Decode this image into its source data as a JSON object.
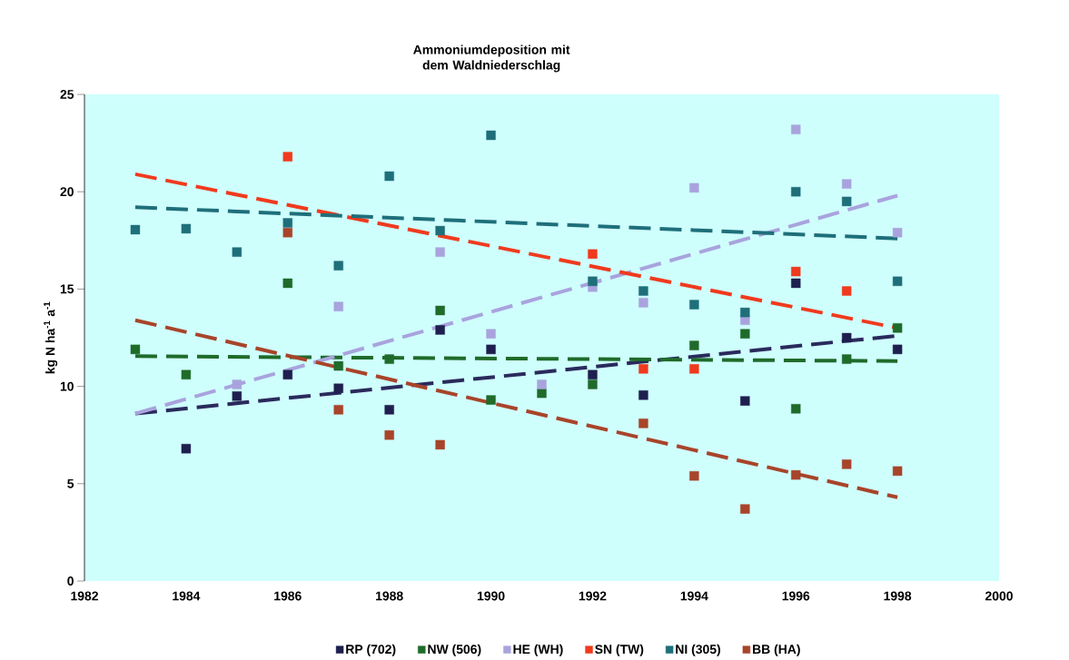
{
  "chart_data": {
    "type": "scatter",
    "title": "Ammoniumdeposition mit dem Waldniederschlag",
    "ylabel": "kg N  ha$^{-1}$  a$^{-1}$",
    "xlim": [
      1982,
      2000
    ],
    "xticks": [
      1982,
      1984,
      1986,
      1988,
      1990,
      1992,
      1994,
      1996,
      1998,
      2000
    ],
    "ylim": [
      0,
      25
    ],
    "yticks": [
      0,
      5,
      10,
      15,
      20,
      25
    ],
    "grid": false,
    "legend": "bottom",
    "marker": "square",
    "series": [
      {
        "type": "line",
        "color": "#2a2a5c",
        "line_style": "dashed",
        "marker": "none",
        "x": [
          1983,
          1998
        ],
        "values": [
          8.6,
          12.6
        ]
      },
      {
        "type": "line",
        "color": "#1f6b2a",
        "line_style": "dashed",
        "marker": "none",
        "x": [
          1983,
          1998
        ],
        "values": [
          11.55,
          11.3
        ]
      },
      {
        "type": "line",
        "color": "#a9a3dd",
        "line_style": "dashed",
        "marker": "none",
        "x": [
          1983,
          1998
        ],
        "values": [
          8.6,
          19.8
        ]
      },
      {
        "type": "line",
        "color": "#f03a1e",
        "line_style": "dashed",
        "marker": "none",
        "x": [
          1983,
          1998
        ],
        "values": [
          20.9,
          13.0
        ]
      },
      {
        "type": "line",
        "color": "#1e6f7a",
        "line_style": "dashed",
        "marker": "none",
        "x": [
          1983,
          1998
        ],
        "values": [
          19.2,
          17.6
        ]
      },
      {
        "type": "line",
        "color": "#a8442a",
        "line_style": "dashed",
        "marker": "none",
        "x": [
          1983,
          1998
        ],
        "values": [
          13.4,
          4.3
        ]
      },
      {
        "name": "RP (702)",
        "color": "#1f1f4f",
        "x": [
          1984,
          1985,
          1986,
          1987,
          1988,
          1989,
          1990,
          1992,
          1993,
          1995,
          1996,
          1997,
          1998
        ],
        "values": [
          6.8,
          9.5,
          10.6,
          9.9,
          8.8,
          12.9,
          11.9,
          10.6,
          9.55,
          9.25,
          15.3,
          12.5,
          11.9
        ]
      },
      {
        "name": "NW (506)",
        "color": "#1f6b2a",
        "x": [
          1983,
          1984,
          1986,
          1987,
          1988,
          1989,
          1990,
          1991,
          1992,
          1994,
          1995,
          1996,
          1997,
          1998
        ],
        "values": [
          11.9,
          10.6,
          15.3,
          11.05,
          11.4,
          13.9,
          9.3,
          9.65,
          10.1,
          12.1,
          12.7,
          8.85,
          11.4,
          13.0
        ]
      },
      {
        "name": "HE (WH)",
        "color": "#a9a3dd",
        "x": [
          1985,
          1987,
          1989,
          1990,
          1991,
          1992,
          1993,
          1994,
          1995,
          1996,
          1997,
          1998
        ],
        "values": [
          10.1,
          14.1,
          16.9,
          12.7,
          10.1,
          15.1,
          14.3,
          20.2,
          13.4,
          23.2,
          20.4,
          17.9
        ]
      },
      {
        "name": "SN (TW)",
        "color": "#f03a1e",
        "x": [
          1986,
          1992,
          1993,
          1994,
          1996,
          1997
        ],
        "values": [
          21.8,
          16.8,
          10.9,
          10.9,
          15.9,
          14.9
        ]
      },
      {
        "name": "NI (305)",
        "color": "#1e6f7a",
        "x": [
          1983,
          1984,
          1985,
          1986,
          1987,
          1988,
          1989,
          1990,
          1992,
          1993,
          1994,
          1995,
          1996,
          1997,
          1998
        ],
        "values": [
          18.05,
          18.1,
          16.9,
          18.4,
          16.2,
          20.8,
          18.0,
          22.9,
          15.4,
          14.9,
          14.2,
          13.8,
          20.0,
          19.5,
          15.4
        ]
      },
      {
        "name": "BB (HA)",
        "color": "#a8442a",
        "x": [
          1986,
          1987,
          1988,
          1989,
          1993,
          1994,
          1995,
          1996,
          1997,
          1998
        ],
        "values": [
          17.9,
          8.8,
          7.5,
          7.0,
          8.1,
          5.4,
          3.7,
          5.45,
          6.0,
          5.65
        ]
      }
    ]
  }
}
